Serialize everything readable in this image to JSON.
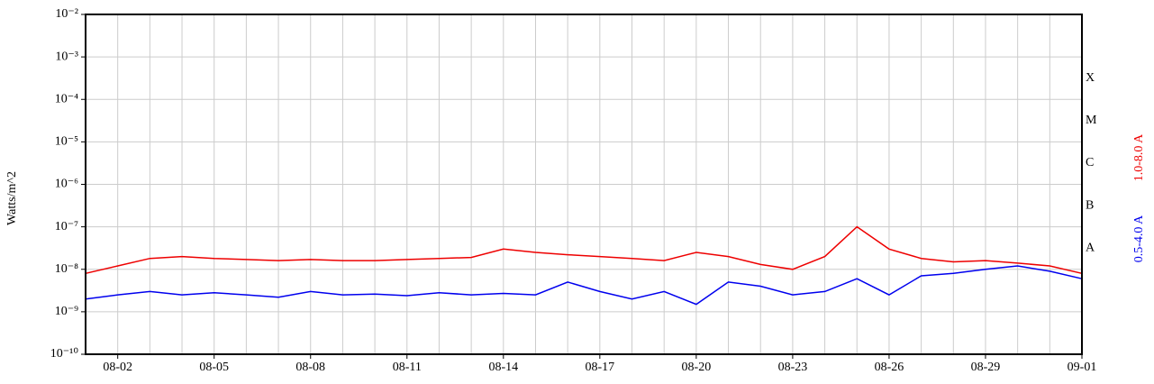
{
  "chart_data": {
    "type": "line",
    "ylabel": "Watts/m^2",
    "log_scale": true,
    "grid": true,
    "ylim": [
      1e-10,
      0.01
    ],
    "yticks": [
      {
        "value": 1e-10,
        "label": "10⁻¹⁰"
      },
      {
        "value": 1e-09,
        "label": "10⁻⁹"
      },
      {
        "value": 1e-08,
        "label": "10⁻⁸"
      },
      {
        "value": 1e-07,
        "label": "10⁻⁷"
      },
      {
        "value": 1e-06,
        "label": "10⁻⁶"
      },
      {
        "value": 1e-05,
        "label": "10⁻⁵"
      },
      {
        "value": 0.0001,
        "label": "10⁻⁴"
      },
      {
        "value": 0.001,
        "label": "10⁻³"
      },
      {
        "value": 0.01,
        "label": "10⁻²"
      }
    ],
    "x": [
      "08-01",
      "08-02",
      "08-03",
      "08-04",
      "08-05",
      "08-06",
      "08-07",
      "08-08",
      "08-09",
      "08-10",
      "08-11",
      "08-12",
      "08-13",
      "08-14",
      "08-15",
      "08-16",
      "08-17",
      "08-18",
      "08-19",
      "08-20",
      "08-21",
      "08-22",
      "08-23",
      "08-24",
      "08-25",
      "08-26",
      "08-27",
      "08-28",
      "08-29",
      "08-30",
      "08-31",
      "09-01"
    ],
    "xticks": [
      "08-02",
      "08-05",
      "08-08",
      "08-11",
      "08-14",
      "08-17",
      "08-20",
      "08-23",
      "08-26",
      "08-29",
      "09-01"
    ],
    "flare_classes": [
      "A",
      "B",
      "C",
      "M",
      "X"
    ],
    "series": [
      {
        "name": "0.5-4.0 A",
        "color": "#0000ee",
        "values": [
          2e-09,
          2.5e-09,
          3e-09,
          2.5e-09,
          2.8e-09,
          2.5e-09,
          2.2e-09,
          3e-09,
          2.5e-09,
          2.6e-09,
          2.4e-09,
          2.8e-09,
          2.5e-09,
          2.7e-09,
          2.5e-09,
          5e-09,
          3e-09,
          2e-09,
          3e-09,
          1.5e-09,
          5e-09,
          4e-09,
          2.5e-09,
          3e-09,
          6e-09,
          2.5e-09,
          7e-09,
          8e-09,
          1e-08,
          1.2e-08,
          9e-09,
          6e-09
        ]
      },
      {
        "name": "1.0-8.0 A",
        "color": "#ee0000",
        "values": [
          8e-09,
          1.2e-08,
          1.8e-08,
          2e-08,
          1.8e-08,
          1.7e-08,
          1.6e-08,
          1.7e-08,
          1.6e-08,
          1.6e-08,
          1.7e-08,
          1.8e-08,
          1.9e-08,
          3e-08,
          2.5e-08,
          2.2e-08,
          2e-08,
          1.8e-08,
          1.6e-08,
          2.5e-08,
          2e-08,
          1.3e-08,
          1e-08,
          2e-08,
          1e-07,
          3e-08,
          1.8e-08,
          1.5e-08,
          1.6e-08,
          1.4e-08,
          1.2e-08,
          8e-09
        ]
      }
    ]
  }
}
